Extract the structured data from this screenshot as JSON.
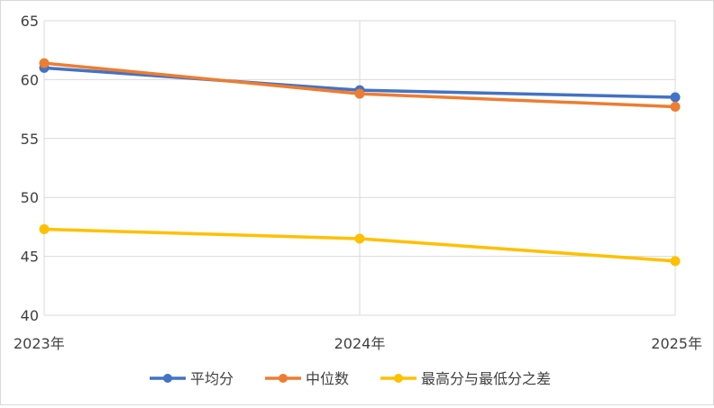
{
  "chart_data": {
    "type": "line",
    "title": "",
    "xlabel": "",
    "ylabel": "",
    "categories": [
      "2023年",
      "2024年",
      "2025年"
    ],
    "ylim": [
      40,
      65
    ],
    "yticks": [
      "40",
      "45",
      "50",
      "55",
      "60",
      "65"
    ],
    "grid": true,
    "legend_position": "bottom",
    "series": [
      {
        "name": "平均分",
        "values": [
          61.0,
          59.1,
          58.5
        ],
        "color": "#4472C4"
      },
      {
        "name": "中位数",
        "values": [
          61.4,
          58.8,
          57.7
        ],
        "color": "#ED7D31"
      },
      {
        "name": "最高分与最低分之差",
        "values": [
          47.3,
          46.5,
          44.6
        ],
        "color": "#FFC000"
      }
    ]
  }
}
